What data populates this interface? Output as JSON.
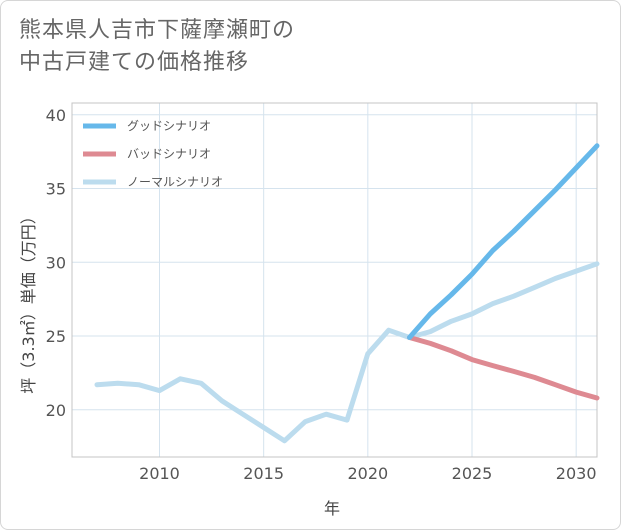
{
  "page": {
    "title_line1": "熊本県人吉市下薩摩瀬町の",
    "title_line2": "中古戸建ての価格推移"
  },
  "chart_data": {
    "type": "line",
    "title": "熊本県人吉市下薩摩瀬町の中古戸建ての価格推移",
    "xlabel": "年",
    "ylabel": "坪（3.3㎡）単価（万円）",
    "xlim": [
      2005.8,
      2031
    ],
    "ylim": [
      16.8,
      40.8
    ],
    "x_ticks": [
      2010,
      2015,
      2020,
      2025,
      2030
    ],
    "y_ticks": [
      20,
      25,
      30,
      35,
      40
    ],
    "grid": true,
    "legend_position": "top-left",
    "series": [
      {
        "name": "グッドシナリオ",
        "color": "#66b8ea",
        "x": [
          2022,
          2023,
          2024,
          2025,
          2026,
          2027,
          2028,
          2029,
          2030,
          2031
        ],
        "y": [
          24.9,
          26.5,
          27.8,
          29.2,
          30.8,
          32.1,
          33.5,
          34.9,
          36.4,
          37.9
        ]
      },
      {
        "name": "バッドシナリオ",
        "color": "#de8a92",
        "x": [
          2022,
          2023,
          2024,
          2025,
          2026,
          2027,
          2028,
          2029,
          2030,
          2031
        ],
        "y": [
          24.9,
          24.5,
          24.0,
          23.4,
          23.0,
          22.6,
          22.2,
          21.7,
          21.2,
          20.8
        ]
      },
      {
        "name": "ノーマルシナリオ",
        "color": "#bcdcee",
        "x": [
          2007,
          2008,
          2009,
          2010,
          2011,
          2012,
          2013,
          2014,
          2015,
          2016,
          2017,
          2018,
          2019,
          2020,
          2021,
          2022,
          2023,
          2024,
          2025,
          2026,
          2027,
          2028,
          2029,
          2030,
          2031
        ],
        "y": [
          21.7,
          21.8,
          21.7,
          21.3,
          22.1,
          21.8,
          20.6,
          19.7,
          18.8,
          17.9,
          19.2,
          19.7,
          19.3,
          23.8,
          25.4,
          24.9,
          25.3,
          26.0,
          26.5,
          27.2,
          27.7,
          28.3,
          28.9,
          29.4,
          29.9
        ]
      }
    ]
  }
}
